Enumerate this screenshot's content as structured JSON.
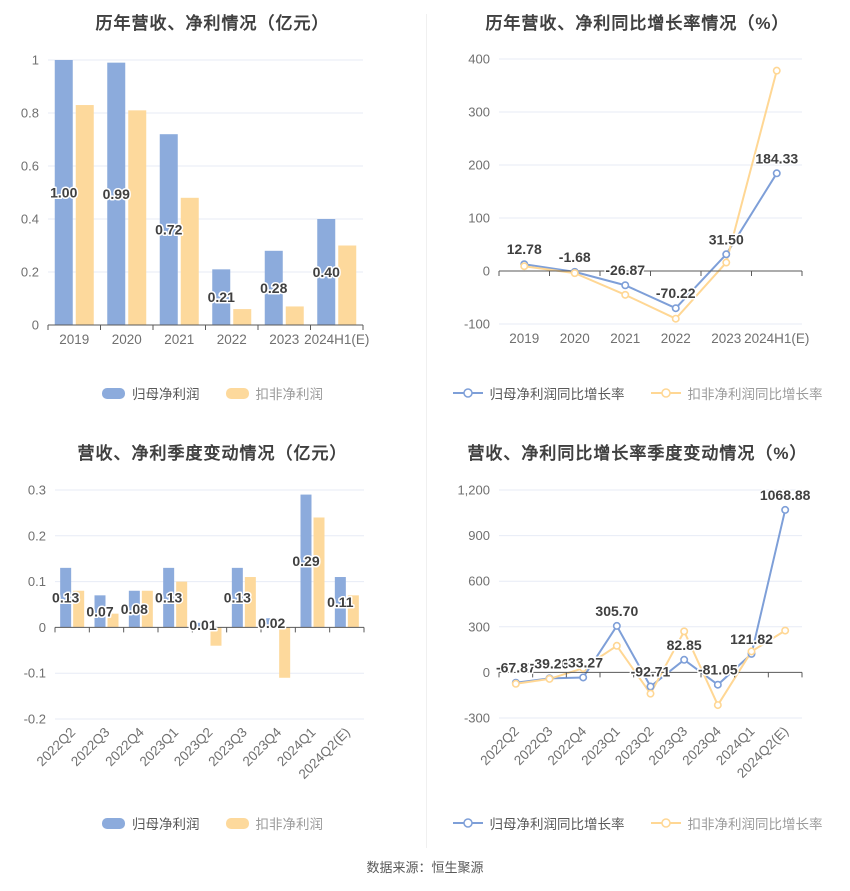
{
  "page": {
    "background": "#FFFFFF",
    "footer": "数据来源：恒生聚源"
  },
  "style": {
    "bar_blue": "#8CABDC",
    "bar_yellow": "#FDD99C",
    "line_blue": "#7E9FD8",
    "line_yellow": "#FFD794",
    "grid": "#E7EBF6",
    "axis": "#5A5A5A",
    "tick_text": "#707070",
    "value_text": "#404040",
    "title_text": "#404040",
    "legend_text_primary": "#595959",
    "legend_text_secondary": "#9B9B9B",
    "footer_text": "#595959",
    "divider": "#F0F0F0"
  },
  "chart_data": [
    {
      "type": "bar",
      "title": "历年营收、净利情况（亿元）",
      "unit": "亿元",
      "categories": [
        "2019",
        "2020",
        "2021",
        "2022",
        "2023",
        "2024H1(E)"
      ],
      "series": [
        {
          "name": "归母净利润",
          "color": "#8CABDC",
          "values": [
            1.0,
            0.99,
            0.72,
            0.21,
            0.28,
            0.4
          ],
          "labels": [
            "1.00",
            "0.99",
            "0.72",
            "0.21",
            "0.28",
            "0.40"
          ]
        },
        {
          "name": "扣非净利润",
          "color": "#FDD99C",
          "values": [
            0.83,
            0.81,
            0.48,
            0.06,
            0.07,
            0.3
          ]
        }
      ],
      "ylim": [
        0,
        1
      ],
      "yticks": [
        0,
        0.2,
        0.4,
        0.6,
        0.8,
        1
      ],
      "ytick_labels": [
        "0",
        "0.2",
        "0.4",
        "0.6",
        "0.8",
        "1"
      ],
      "grid": true,
      "legend_position": "bottom"
    },
    {
      "type": "line",
      "title": "历年营收、净利同比增长率情况（%）",
      "unit": "%",
      "categories": [
        "2019",
        "2020",
        "2021",
        "2022",
        "2023",
        "2024H1(E)"
      ],
      "series": [
        {
          "name": "归母净利润同比增长率",
          "color": "#7E9FD8",
          "values": [
            12.78,
            -1.68,
            -26.87,
            -70.22,
            31.5,
            184.33
          ],
          "labels": [
            "12.78",
            "-1.68",
            "-26.87",
            "-70.22",
            "31.50",
            "184.33"
          ]
        },
        {
          "name": "扣非净利润同比增长率",
          "color": "#FFD794",
          "values": [
            9,
            -4,
            -45,
            -90,
            16,
            378
          ]
        }
      ],
      "ylim": [
        -100,
        400
      ],
      "yticks": [
        -100,
        0,
        100,
        200,
        300,
        400
      ],
      "ytick_labels": [
        "-100",
        "0",
        "100",
        "200",
        "300",
        "400"
      ],
      "grid": true,
      "legend_position": "bottom"
    },
    {
      "type": "bar",
      "title": "营收、净利季度变动情况（亿元）",
      "unit": "亿元",
      "categories": [
        "2022Q2",
        "2022Q3",
        "2022Q4",
        "2023Q1",
        "2023Q2",
        "2023Q3",
        "2023Q4",
        "2024Q1",
        "2024Q2(E)"
      ],
      "series": [
        {
          "name": "归母净利润",
          "color": "#8CABDC",
          "values": [
            0.13,
            0.07,
            0.08,
            0.13,
            0.01,
            0.13,
            0.02,
            0.29,
            0.11
          ],
          "labels": [
            "0.13",
            "0.07",
            "0.08",
            "0.13",
            "0.01",
            "0.13",
            "0.02",
            "0.29",
            "0.11"
          ]
        },
        {
          "name": "扣非净利润",
          "color": "#FDD99C",
          "values": [
            0.08,
            0.03,
            0.08,
            0.1,
            -0.04,
            0.11,
            -0.11,
            0.24,
            0.07
          ]
        }
      ],
      "ylim": [
        -0.2,
        0.3
      ],
      "yticks": [
        -0.2,
        -0.1,
        0,
        0.1,
        0.2,
        0.3
      ],
      "ytick_labels": [
        "-0.2",
        "-0.1",
        "0",
        "0.1",
        "0.2",
        "0.3"
      ],
      "grid": true,
      "legend_position": "bottom",
      "x_labels_rotated": true
    },
    {
      "type": "line",
      "title": "营收、净利同比增长率季度变动情况（%）",
      "unit": "%",
      "categories": [
        "2022Q2",
        "2022Q3",
        "2022Q4",
        "2023Q1",
        "2023Q2",
        "2023Q3",
        "2023Q4",
        "2024Q1",
        "2024Q2(E)"
      ],
      "series": [
        {
          "name": "归母净利润同比增长率",
          "color": "#7E9FD8",
          "values": [
            -67.87,
            -39.2,
            -33.27,
            305.7,
            -92.71,
            82.85,
            -81.05,
            121.82,
            1068.88
          ],
          "labels": [
            "-67.87",
            "-39.20",
            "-33.27",
            "305.70",
            "-92.71",
            "82.85",
            "-81.05",
            "121.82",
            "1068.88"
          ]
        },
        {
          "name": "扣非净利润同比增长率",
          "color": "#FFD794",
          "values": [
            -75,
            -43,
            28,
            175,
            -140,
            270,
            -215,
            138,
            275
          ]
        }
      ],
      "ylim": [
        -300,
        1200
      ],
      "yticks": [
        -300,
        0,
        300,
        600,
        900,
        1200
      ],
      "ytick_labels": [
        "-300",
        "0",
        "300",
        "600",
        "900",
        "1,200"
      ],
      "grid": true,
      "legend_position": "bottom",
      "x_labels_rotated": true
    }
  ]
}
